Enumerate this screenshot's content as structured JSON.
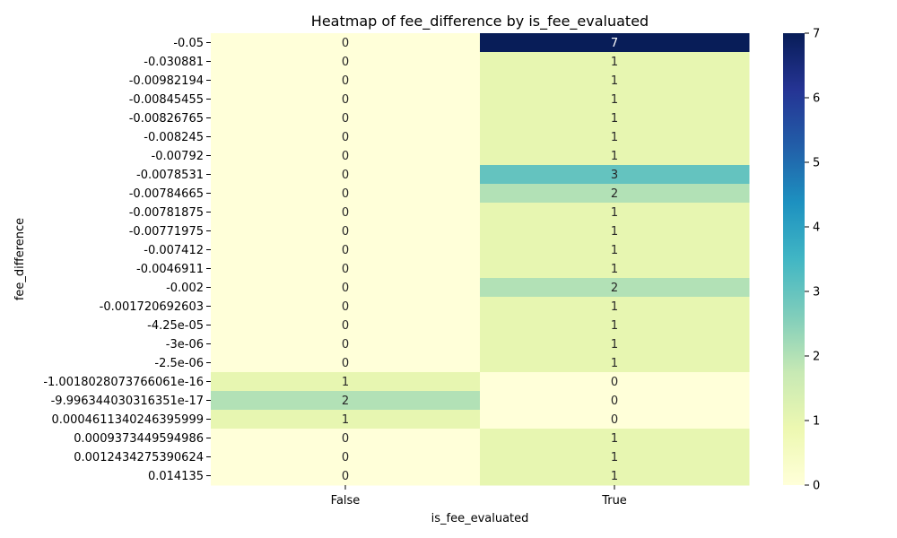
{
  "chart_data": {
    "type": "heatmap",
    "title": "Heatmap of fee_difference by is_fee_evaluated",
    "xlabel": "is_fee_evaluated",
    "ylabel": "fee_difference",
    "columns": [
      "False",
      "True"
    ],
    "rows": [
      "-0.05",
      "-0.030881",
      "-0.00982194",
      "-0.00845455",
      "-0.00826765",
      "-0.008245",
      "-0.00792",
      "-0.0078531",
      "-0.00784665",
      "-0.00781875",
      "-0.00771975",
      "-0.007412",
      "-0.0046911",
      "-0.002",
      "-0.001720692603",
      "-4.25e-05",
      "-3e-06",
      "-2.5e-06",
      "-1.0018028073766061e-16",
      "-9.996344030316351e-17",
      "0.0004611340246395999",
      "0.0009373449594986",
      "0.0012434275390624",
      "0.014135"
    ],
    "values": [
      [
        0,
        7
      ],
      [
        0,
        1
      ],
      [
        0,
        1
      ],
      [
        0,
        1
      ],
      [
        0,
        1
      ],
      [
        0,
        1
      ],
      [
        0,
        1
      ],
      [
        0,
        3
      ],
      [
        0,
        2
      ],
      [
        0,
        1
      ],
      [
        0,
        1
      ],
      [
        0,
        1
      ],
      [
        0,
        1
      ],
      [
        0,
        2
      ],
      [
        0,
        1
      ],
      [
        0,
        1
      ],
      [
        0,
        1
      ],
      [
        0,
        1
      ],
      [
        1,
        0
      ],
      [
        2,
        0
      ],
      [
        1,
        0
      ],
      [
        0,
        1
      ],
      [
        0,
        1
      ],
      [
        0,
        1
      ]
    ],
    "colorbar": {
      "colormap": "YlGnBu",
      "range": [
        0,
        7
      ],
      "ticks": [
        "0",
        "1",
        "2",
        "3",
        "4",
        "5",
        "6",
        "7"
      ]
    },
    "annotations": "cell counts shown in each cell"
  }
}
